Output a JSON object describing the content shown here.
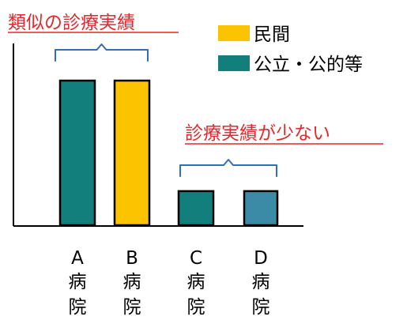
{
  "chart_data": {
    "type": "bar",
    "categories": [
      [
        "A",
        "病",
        "院"
      ],
      [
        "B",
        "病",
        "院"
      ],
      [
        "C",
        "病",
        "院"
      ],
      [
        "D",
        "病",
        "院"
      ]
    ],
    "values": [
      100,
      100,
      24,
      24
    ],
    "bar_colors": [
      "#127f7c",
      "#fcc300",
      "#127f7c",
      "#3b8ba6"
    ],
    "ylim": [
      0,
      110
    ],
    "grid": false,
    "legend": {
      "position": "top-right",
      "items": [
        {
          "label": "民間",
          "color": "#fcc300"
        },
        {
          "label": "公立・公的等",
          "color": "#127f7c"
        }
      ]
    },
    "annotations": [
      {
        "text": "類似の診療実績",
        "bracket_over": [
          0,
          1
        ],
        "color": "#e8262a"
      },
      {
        "text": "診療実績が少ない",
        "bracket_over": [
          2,
          3
        ],
        "color": "#e8262a"
      }
    ]
  }
}
